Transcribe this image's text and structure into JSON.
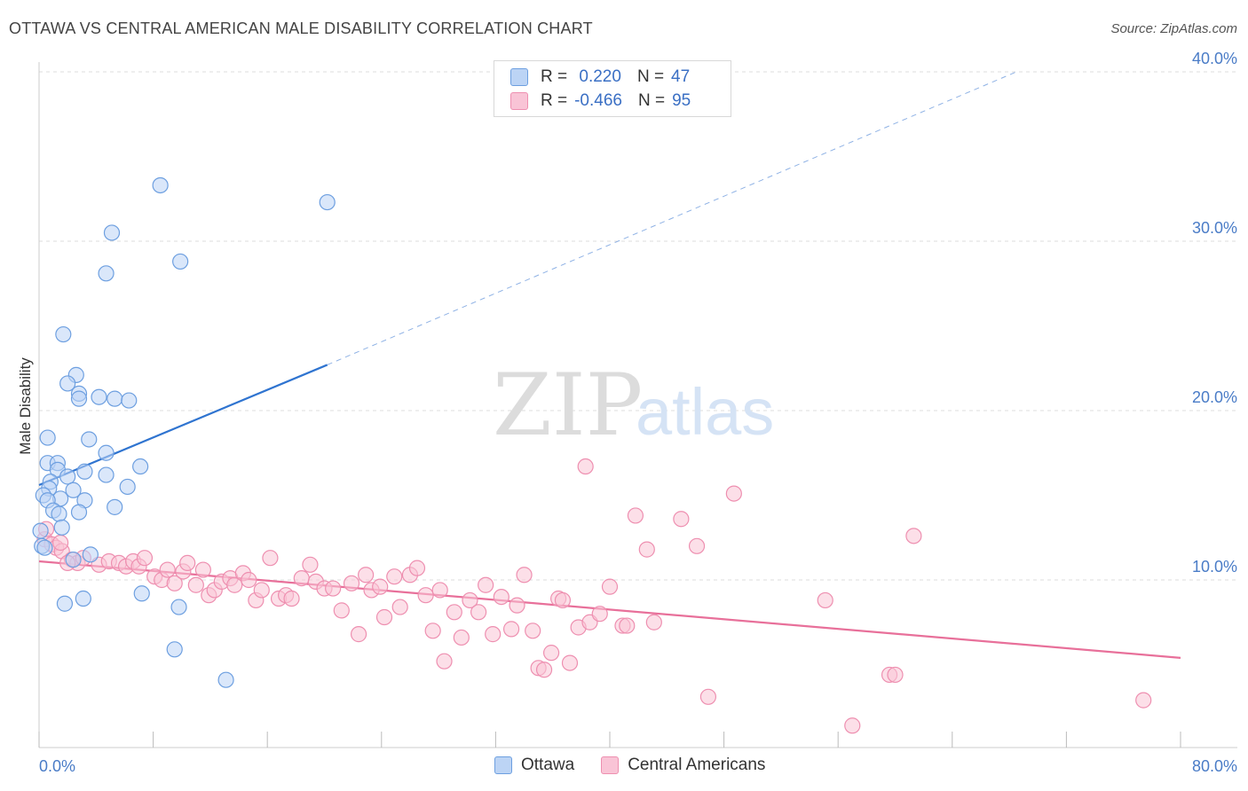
{
  "title": "OTTAWA VS CENTRAL AMERICAN MALE DISABILITY CORRELATION CHART",
  "source": "Source: ZipAtlas.com",
  "watermark": {
    "zip": "ZIP",
    "atlas": "atlas"
  },
  "colors": {
    "ottawa_fill": "#bcd4f5",
    "ottawa_stroke": "#6d9fe0",
    "ottawa_line": "#2f74d0",
    "central_fill": "#f9c4d6",
    "central_stroke": "#ee8fb0",
    "central_line": "#e8709a",
    "tick_label": "#4a7cc7",
    "grid": "#dddddd"
  },
  "legend": {
    "rows": [
      {
        "r_label": "R =",
        "r_value": " 0.220",
        "n_label": "N =",
        "n_value": "47"
      },
      {
        "r_label": "R =",
        "r_value": "-0.466",
        "n_label": "N =",
        "n_value": "95"
      }
    ]
  },
  "bottom_legend": {
    "series1": "Ottawa",
    "series2": "Central Americans"
  },
  "chart_data": {
    "type": "scatter",
    "title": "OTTAWA VS CENTRAL AMERICAN MALE DISABILITY CORRELATION CHART",
    "xlabel": "",
    "ylabel": "Male Disability",
    "xlim": [
      0,
      80
    ],
    "ylim": [
      0,
      41
    ],
    "x_tick_labels": [
      "0.0%",
      "80.0%"
    ],
    "y_ticks": [
      10,
      20,
      30,
      40
    ],
    "y_tick_labels": [
      "10.0%",
      "20.0%",
      "30.0%",
      "40.0%"
    ],
    "grid": true,
    "legend_position": "top-center",
    "series": [
      {
        "name": "Ottawa",
        "r": 0.22,
        "n": 47,
        "trend": {
          "x": [
            0,
            20.2
          ],
          "y": [
            15.6,
            22.7
          ],
          "extended_to": [
            68.5,
            40.0
          ]
        },
        "points": [
          [
            8.5,
            33.3
          ],
          [
            20.2,
            32.3
          ],
          [
            5.1,
            30.5
          ],
          [
            9.9,
            28.8
          ],
          [
            4.7,
            28.1
          ],
          [
            1.7,
            24.5
          ],
          [
            2.6,
            22.1
          ],
          [
            2.0,
            21.6
          ],
          [
            2.8,
            21.0
          ],
          [
            2.8,
            20.7
          ],
          [
            4.2,
            20.8
          ],
          [
            5.3,
            20.7
          ],
          [
            6.3,
            20.6
          ],
          [
            0.6,
            18.4
          ],
          [
            3.5,
            18.3
          ],
          [
            4.7,
            17.5
          ],
          [
            0.6,
            16.9
          ],
          [
            1.3,
            16.9
          ],
          [
            7.1,
            16.7
          ],
          [
            1.3,
            16.5
          ],
          [
            3.2,
            16.4
          ],
          [
            4.7,
            16.2
          ],
          [
            2.0,
            16.1
          ],
          [
            0.8,
            15.8
          ],
          [
            6.2,
            15.5
          ],
          [
            0.7,
            15.4
          ],
          [
            2.4,
            15.3
          ],
          [
            0.3,
            15.0
          ],
          [
            1.5,
            14.8
          ],
          [
            3.2,
            14.7
          ],
          [
            0.6,
            14.7
          ],
          [
            5.3,
            14.3
          ],
          [
            1.0,
            14.1
          ],
          [
            2.8,
            14.0
          ],
          [
            1.4,
            13.9
          ],
          [
            1.6,
            13.1
          ],
          [
            0.1,
            12.9
          ],
          [
            0.2,
            12.0
          ],
          [
            3.6,
            11.5
          ],
          [
            2.4,
            11.2
          ],
          [
            0.4,
            11.9
          ],
          [
            7.2,
            9.2
          ],
          [
            3.1,
            8.9
          ],
          [
            1.8,
            8.6
          ],
          [
            9.8,
            8.4
          ],
          [
            9.5,
            5.9
          ],
          [
            13.1,
            4.1
          ]
        ]
      },
      {
        "name": "Central Americans",
        "r": -0.466,
        "n": 95,
        "trend": {
          "x": [
            0,
            80
          ],
          "y": [
            11.1,
            5.4
          ]
        },
        "points": [
          [
            0.4,
            12.4
          ],
          [
            0.9,
            12.1
          ],
          [
            1.2,
            11.9
          ],
          [
            1.6,
            11.7
          ],
          [
            2.3,
            11.2
          ],
          [
            2.7,
            11.0
          ],
          [
            3.1,
            11.3
          ],
          [
            4.2,
            10.9
          ],
          [
            4.9,
            11.1
          ],
          [
            5.6,
            11.0
          ],
          [
            6.1,
            10.8
          ],
          [
            6.6,
            11.1
          ],
          [
            7.0,
            10.8
          ],
          [
            7.4,
            11.3
          ],
          [
            8.1,
            10.2
          ],
          [
            8.6,
            10.0
          ],
          [
            9.0,
            10.6
          ],
          [
            9.5,
            9.8
          ],
          [
            10.1,
            10.5
          ],
          [
            10.4,
            11.0
          ],
          [
            11.0,
            9.7
          ],
          [
            11.5,
            10.6
          ],
          [
            11.9,
            9.1
          ],
          [
            12.3,
            9.4
          ],
          [
            12.8,
            9.9
          ],
          [
            13.4,
            10.1
          ],
          [
            13.7,
            9.7
          ],
          [
            14.3,
            10.4
          ],
          [
            14.7,
            10.0
          ],
          [
            15.2,
            8.8
          ],
          [
            15.6,
            9.4
          ],
          [
            16.2,
            11.3
          ],
          [
            16.8,
            8.9
          ],
          [
            17.3,
            9.1
          ],
          [
            17.7,
            8.9
          ],
          [
            18.4,
            10.1
          ],
          [
            19.0,
            10.9
          ],
          [
            19.4,
            9.9
          ],
          [
            20.0,
            9.5
          ],
          [
            20.6,
            9.5
          ],
          [
            21.2,
            8.2
          ],
          [
            21.9,
            9.8
          ],
          [
            22.4,
            6.8
          ],
          [
            22.9,
            10.3
          ],
          [
            23.3,
            9.4
          ],
          [
            23.9,
            9.6
          ],
          [
            24.2,
            7.8
          ],
          [
            24.9,
            10.2
          ],
          [
            25.3,
            8.4
          ],
          [
            26.0,
            10.3
          ],
          [
            26.5,
            10.7
          ],
          [
            27.1,
            9.1
          ],
          [
            27.6,
            7.0
          ],
          [
            28.1,
            9.4
          ],
          [
            28.4,
            5.2
          ],
          [
            29.1,
            8.1
          ],
          [
            29.6,
            6.6
          ],
          [
            30.2,
            8.8
          ],
          [
            30.8,
            8.1
          ],
          [
            31.3,
            9.7
          ],
          [
            31.8,
            6.8
          ],
          [
            32.4,
            9.0
          ],
          [
            33.1,
            7.1
          ],
          [
            33.5,
            8.5
          ],
          [
            34.0,
            10.3
          ],
          [
            34.6,
            7.0
          ],
          [
            35.0,
            4.8
          ],
          [
            35.4,
            4.7
          ],
          [
            35.9,
            5.7
          ],
          [
            36.4,
            8.9
          ],
          [
            36.7,
            8.8
          ],
          [
            37.2,
            5.1
          ],
          [
            37.8,
            7.2
          ],
          [
            38.3,
            16.7
          ],
          [
            38.6,
            7.5
          ],
          [
            39.3,
            8.0
          ],
          [
            40.0,
            9.6
          ],
          [
            40.9,
            7.3
          ],
          [
            41.2,
            7.3
          ],
          [
            41.8,
            13.8
          ],
          [
            42.6,
            11.8
          ],
          [
            43.1,
            7.5
          ],
          [
            45.0,
            13.6
          ],
          [
            46.1,
            12.0
          ],
          [
            46.9,
            3.1
          ],
          [
            48.7,
            15.1
          ],
          [
            55.1,
            8.8
          ],
          [
            57.0,
            1.4
          ],
          [
            59.6,
            4.4
          ],
          [
            60.0,
            4.4
          ],
          [
            61.3,
            12.6
          ],
          [
            77.4,
            2.9
          ],
          [
            0.5,
            13.0
          ],
          [
            1.5,
            12.2
          ],
          [
            2.0,
            11.0
          ]
        ]
      }
    ]
  }
}
